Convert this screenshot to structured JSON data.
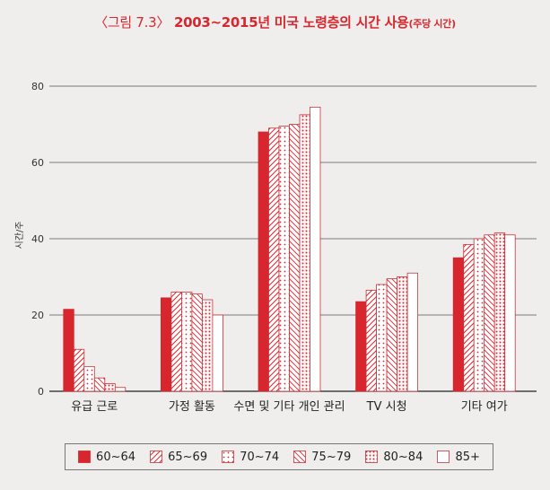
{
  "chart_data": {
    "type": "bar",
    "title_prefix": "〈그림 7.3〉",
    "title": "2003~2015년 미국 노령층의 시간 사용",
    "subtitle": "(주당 시간)",
    "ylabel": "시간/주",
    "ylim": [
      0,
      80
    ],
    "yticks": [
      0,
      20,
      40,
      60,
      80
    ],
    "grid": true,
    "legend_position": "bottom",
    "categories": [
      "유급 근로",
      "가정 활동",
      "수면 및 기타 개인 관리",
      "TV 시청",
      "기타 여가"
    ],
    "series": [
      {
        "name": "60~64",
        "values": [
          21.5,
          24.5,
          68,
          23.5,
          35
        ]
      },
      {
        "name": "65~69",
        "values": [
          11,
          26,
          69,
          26.5,
          38.5
        ]
      },
      {
        "name": "70~74",
        "values": [
          6.5,
          26,
          69.5,
          28,
          40
        ]
      },
      {
        "name": "75~79",
        "values": [
          3.5,
          25.5,
          70,
          29.5,
          41
        ]
      },
      {
        "name": "80~84",
        "values": [
          2,
          24,
          72.5,
          30,
          41.5
        ]
      },
      {
        "name": "85+",
        "values": [
          1,
          20,
          74.5,
          31,
          41
        ]
      }
    ],
    "colors": {
      "primary": "#d8262e",
      "hatch": "#d8262e",
      "background": "#efeeec"
    }
  }
}
